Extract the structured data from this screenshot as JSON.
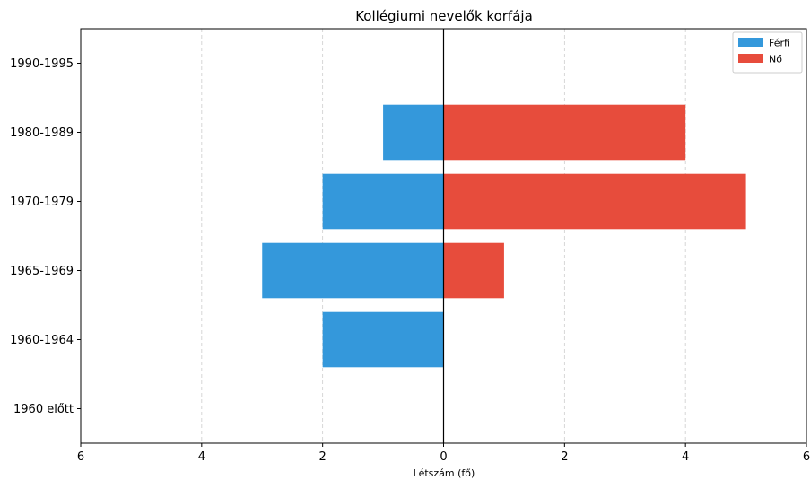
{
  "chart_data": {
    "type": "bar",
    "orientation": "horizontal-diverging",
    "title": "Kollégiumi nevelők korfája",
    "xlabel": "Létszám (fő)",
    "ylabel": "",
    "categories": [
      "1960 előtt",
      "1960-1964",
      "1965-1969",
      "1970-1979",
      "1980-1989",
      "1990-1995"
    ],
    "series": [
      {
        "name": "Férfi",
        "values": [
          0,
          2,
          3,
          2,
          1,
          0
        ],
        "direction": "left",
        "color": "#3498db"
      },
      {
        "name": "Nő",
        "values": [
          0,
          0,
          1,
          5,
          4,
          0
        ],
        "direction": "right",
        "color": "#e74c3c"
      }
    ],
    "xlim": [
      -6,
      6
    ],
    "xticks": [
      -6,
      -4,
      -2,
      0,
      2,
      4,
      6
    ],
    "xtick_labels": [
      "6",
      "4",
      "2",
      "0",
      "2",
      "4",
      "6"
    ],
    "grid": "vertical-dashed",
    "legend_position": "top-right"
  }
}
